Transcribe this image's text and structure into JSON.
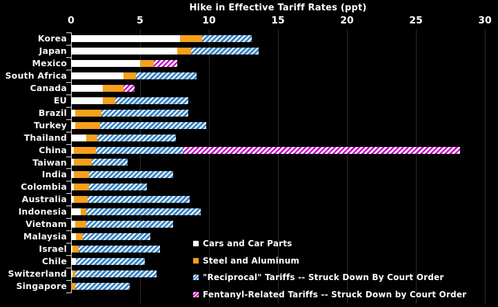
{
  "chart_data": {
    "type": "bar",
    "orientation": "horizontal",
    "stacked": true,
    "title": "Hike in Effective Tariff Rates (ppt)",
    "xlabel": "",
    "ylabel": "",
    "xlim": [
      0,
      30
    ],
    "xticks": [
      0,
      5,
      10,
      15,
      20,
      25,
      30
    ],
    "grid": "vertical-gray",
    "legend_position": "inside-bottom-right",
    "categories": [
      "Korea",
      "Japan",
      "Mexico",
      "South Africa",
      "Canada",
      "EU",
      "Brazil",
      "Turkey",
      "Thailand",
      "China",
      "Taiwan",
      "India",
      "Colombia",
      "Australia",
      "Indonesia",
      "Vietnam",
      "Malaysia",
      "Israel",
      "Chile",
      "Switzerland",
      "Singapore"
    ],
    "series": [
      {
        "name": "Cars and Car Parts",
        "color": "#ffffff",
        "pattern": "solid",
        "values": [
          7.9,
          7.7,
          5.0,
          3.8,
          2.3,
          2.3,
          0.3,
          0.3,
          1.1,
          0.2,
          0.2,
          0.2,
          0.2,
          0.2,
          0.7,
          0.3,
          0.35,
          0.1,
          0.35,
          0.1,
          0
        ]
      },
      {
        "name": "Steel and Aluminum",
        "color": "#f7a01b",
        "pattern": "solid",
        "values": [
          1.6,
          1.0,
          1.0,
          0.9,
          1.5,
          0.9,
          1.9,
          1.8,
          0.8,
          1.6,
          1.3,
          1.1,
          1.1,
          1.0,
          0.4,
          0.8,
          0.5,
          0.45,
          0,
          0.2,
          0.3
        ]
      },
      {
        "name": "\"Reciprocal\" Tariffs -- Struck Down By Court Order",
        "color": "#3e86c5",
        "pattern": "diagonal-hatch-blue-on-white",
        "values": [
          3.6,
          4.9,
          0,
          4.4,
          0,
          5.3,
          6.3,
          7.7,
          5.7,
          6.3,
          2.6,
          6.1,
          4.2,
          7.4,
          8.3,
          6.3,
          4.9,
          5.9,
          5.0,
          5.9,
          3.95
        ]
      },
      {
        "name": "Fentanyl-Related Tariffs -- Struck Down by Court Order",
        "color": "#c611c6",
        "pattern": "diagonal-hatch-magenta-on-white",
        "values": [
          0,
          0,
          1.7,
          0,
          0.8,
          0,
          0,
          0,
          0,
          20.1,
          0,
          0,
          0,
          0,
          0,
          0,
          0,
          0,
          0,
          0,
          0
        ]
      }
    ],
    "totals": [
      13.1,
      13.6,
      7.7,
      9.1,
      4.6,
      8.5,
      8.5,
      9.8,
      7.6,
      28.2,
      4.1,
      7.4,
      5.5,
      8.6,
      9.4,
      7.4,
      5.75,
      6.45,
      5.35,
      6.2,
      4.25
    ]
  },
  "colors": {
    "background": "#000000",
    "text": "#ffffff",
    "gridline": "#2d2d2d",
    "axis": "#e8e8e8"
  }
}
